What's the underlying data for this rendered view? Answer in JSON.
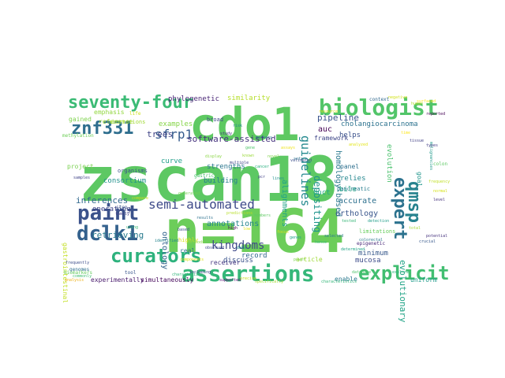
{
  "words": [
    {
      "text": "zscan18",
      "color": "#5dc863"
    },
    {
      "text": "n=164",
      "color": "#6ccd5a"
    },
    {
      "text": "cdo1",
      "color": "#5ec962"
    },
    {
      "text": "biologist",
      "color": "#52c569"
    },
    {
      "text": "seventy-four",
      "color": "#3bbb75"
    },
    {
      "text": "znf331",
      "color": "#2e6e8e"
    },
    {
      "text": "paint",
      "color": "#3b528b"
    },
    {
      "text": "dclk1",
      "color": "#34618d"
    },
    {
      "text": "assertions",
      "color": "#35b779"
    },
    {
      "text": "curators",
      "color": "#2db27d"
    },
    {
      "text": "explicit",
      "color": "#42be71"
    },
    {
      "text": "expert",
      "color": "#2c728e"
    },
    {
      "text": "qmsp",
      "color": "#26828e"
    },
    {
      "text": "sfrp1",
      "color": "#365c8d"
    },
    {
      "text": "semi-automated",
      "color": "#3e4a89"
    },
    {
      "text": "software-assisted",
      "color": "#46327e"
    },
    {
      "text": "kingdoms",
      "color": "#3e4989"
    },
    {
      "text": "guidelines",
      "color": "#23898e"
    },
    {
      "text": "depositing",
      "color": "#1f948c"
    },
    {
      "text": "pipeline",
      "color": "#3a548c"
    },
    {
      "text": "cholangiocarcinoma",
      "color": "#2c728e"
    },
    {
      "text": "retrieving",
      "color": "#297b8e"
    },
    {
      "text": "inferences",
      "color": "#31688e"
    },
    {
      "text": "trees",
      "color": "#414487"
    },
    {
      "text": "ontology",
      "color": "#33638d"
    },
    {
      "text": "evolutionary",
      "color": "#20a386"
    },
    {
      "text": "annotations",
      "color": "#25858e"
    },
    {
      "text": "alignments",
      "color": "#1fa187"
    },
    {
      "text": "homology-based",
      "color": "#2a788e"
    },
    {
      "text": "auc",
      "color": "#440154"
    },
    {
      "text": "phylogenetic",
      "color": "#482475"
    },
    {
      "text": "similarity",
      "color": "#b5de2b"
    },
    {
      "text": "framework",
      "color": "#3f4788"
    },
    {
      "text": "accurate",
      "color": "#2d708e"
    },
    {
      "text": "orthology",
      "color": "#39568c"
    },
    {
      "text": "evolution",
      "color": "#4ac16d"
    },
    {
      "text": "strengths",
      "color": "#2a768e"
    },
    {
      "text": "consortium",
      "color": "#21918c"
    },
    {
      "text": "operating",
      "color": "#404688"
    },
    {
      "text": "examples",
      "color": "#86d549"
    },
    {
      "text": "curve",
      "color": "#1f9e89"
    },
    {
      "text": "building",
      "color": "#277f8e"
    },
    {
      "text": "reference",
      "color": "#a5db36"
    },
    {
      "text": "project",
      "color": "#7ad151"
    },
    {
      "text": "panel",
      "color": "#2e6f8e"
    },
    {
      "text": "relies",
      "color": "#24878e"
    },
    {
      "text": "bile",
      "color": "#21a585"
    },
    {
      "text": "helps",
      "color": "#3b518b"
    },
    {
      "text": "duct",
      "color": "#22a884"
    },
    {
      "text": "record",
      "color": "#31688e"
    },
    {
      "text": "discuss",
      "color": "#3a548c"
    },
    {
      "text": "receiver",
      "color": "#453781"
    },
    {
      "text": "real",
      "color": "#2c738e"
    },
    {
      "text": "emphasis",
      "color": "#93d741"
    },
    {
      "text": "gained",
      "color": "#7fd34e"
    },
    {
      "text": "gastrointestinal",
      "color": "#c2df23"
    },
    {
      "text": "minimum",
      "color": "#38598c"
    },
    {
      "text": "mucosa",
      "color": "#3e4c8a"
    },
    {
      "text": "article",
      "color": "#a0da39"
    },
    {
      "text": "enable",
      "color": "#2a788e"
    },
    {
      "text": "uniform",
      "color": "#1e9b8a"
    },
    {
      "text": "experimentally",
      "color": "#481a6c"
    },
    {
      "text": "simultaneously",
      "color": "#46085c"
    },
    {
      "text": "goal",
      "color": "#1f958b"
    },
    {
      "text": "colon",
      "color": "#5cc863"
    },
    {
      "text": "pancreatic",
      "color": "#287d8e"
    },
    {
      "text": "context",
      "color": "#30698e"
    },
    {
      "text": "epigenetic",
      "color": "#482878"
    },
    {
      "text": "limitations",
      "color": "#67cc5c"
    },
    {
      "text": "highly",
      "color": "#d8e219"
    },
    {
      "text": "tool",
      "color": "#39558c"
    },
    {
      "text": "organisms",
      "color": "#3b528b"
    },
    {
      "text": "methylation",
      "color": "#6ece58"
    },
    {
      "text": "aberrations",
      "color": "#a2da37"
    },
    {
      "text": "step",
      "color": "#3b528b"
    },
    {
      "text": "life",
      "color": "#cde11d"
    },
    {
      "text": "broad",
      "color": "#3f4889"
    },
    {
      "text": "gastric",
      "color": "#48c16e"
    },
    {
      "text": "analyzed",
      "color": "#e2e418"
    },
    {
      "text": "surfaced",
      "color": "#fde725"
    },
    {
      "text": "negative",
      "color": "#d2e21b"
    },
    {
      "text": "reported",
      "color": "#440154"
    },
    {
      "text": "predictions",
      "color": "#b8de29"
    },
    {
      "text": "components",
      "color": "#dde318"
    },
    {
      "text": "genomes",
      "color": "#2e6d8e"
    },
    {
      "text": "biomarkers",
      "color": "#65cb5e"
    },
    {
      "text": "analysis",
      "color": "#ecb11a"
    },
    {
      "text": "family",
      "color": "#433e85"
    },
    {
      "text": "precise",
      "color": "#c5e021"
    },
    {
      "text": "frequently",
      "color": "#3d4d8a"
    },
    {
      "text": "commonly",
      "color": "#42be71"
    },
    {
      "text": "including",
      "color": "#3f4788"
    },
    {
      "text": "specifically",
      "color": "#a8db34"
    },
    {
      "text": "characterizes",
      "color": "#30b47a"
    },
    {
      "text": "characteristics",
      "color": "#35b779"
    },
    {
      "text": "supported",
      "color": "#5a0d74"
    },
    {
      "text": "explore",
      "color": "#2fb47c"
    },
    {
      "text": "crucial",
      "color": "#38598c"
    },
    {
      "text": "samples",
      "color": "#404387"
    },
    {
      "text": "identified",
      "color": "#25848e"
    },
    {
      "text": "methods",
      "color": "#89d548"
    },
    {
      "text": "colorectal",
      "color": "#2a788e"
    },
    {
      "text": "resource",
      "color": "#dfe318"
    },
    {
      "text": "potential",
      "color": "#46337e"
    },
    {
      "text": "determined",
      "color": "#20a486"
    },
    {
      "text": "frequency",
      "color": "#c0df25"
    },
    {
      "text": "malignancies",
      "color": "#1f998a"
    },
    {
      "text": "types",
      "color": "#433e85"
    },
    {
      "text": "cancer",
      "color": "#29af7f"
    },
    {
      "text": "genes",
      "color": "#1fa088"
    },
    {
      "text": "multiple",
      "color": "#404588"
    },
    {
      "text": "display",
      "color": "#8bd646"
    },
    {
      "text": "compare",
      "color": "#c8e020"
    },
    {
      "text": "generated",
      "color": "#73d056"
    },
    {
      "text": "observed",
      "color": "#3e4c8a"
    },
    {
      "text": "members",
      "color": "#5ec962"
    },
    {
      "text": "assays",
      "color": "#efe51c"
    },
    {
      "text": "lines",
      "color": "#20928c"
    },
    {
      "text": "pcr",
      "color": "#414287"
    },
    {
      "text": "risk",
      "color": "#238a8d"
    },
    {
      "text": "gene",
      "color": "#50c46a"
    },
    {
      "text": "focus",
      "color": "#dae319"
    },
    {
      "text": "known",
      "color": "#9bd93c"
    },
    {
      "text": "sets",
      "color": "#2b748e"
    },
    {
      "text": "hence",
      "color": "#3bbb75"
    },
    {
      "text": "database",
      "color": "#4ec36b"
    },
    {
      "text": "power",
      "color": "#7cd250"
    },
    {
      "text": "selected",
      "color": "#2a788e"
    },
    {
      "text": "validated",
      "color": "#3d4e8a"
    },
    {
      "text": "tested",
      "color": "#36b677"
    },
    {
      "text": "data",
      "color": "#1f968b"
    },
    {
      "text": "time",
      "color": "#fde725"
    },
    {
      "text": "human",
      "color": "#b2dd2d"
    },
    {
      "text": "tissue",
      "color": "#424186"
    },
    {
      "text": "study",
      "color": "#46307e"
    },
    {
      "text": "novel",
      "color": "#81d34d"
    },
    {
      "text": "markers",
      "color": "#2a778e"
    },
    {
      "text": "normal",
      "color": "#d5e21a"
    },
    {
      "text": "level",
      "color": "#46337e"
    },
    {
      "text": "detection",
      "color": "#1e9d89"
    },
    {
      "text": "total",
      "color": "#a5db36"
    },
    {
      "text": "using",
      "color": "#3bbb75"
    },
    {
      "text": "based",
      "color": "#3d4e8a"
    },
    {
      "text": "results",
      "color": "#2c718e"
    },
    {
      "text": "high",
      "color": "#440154"
    },
    {
      "text": "low",
      "color": "#e5e419"
    }
  ]
}
